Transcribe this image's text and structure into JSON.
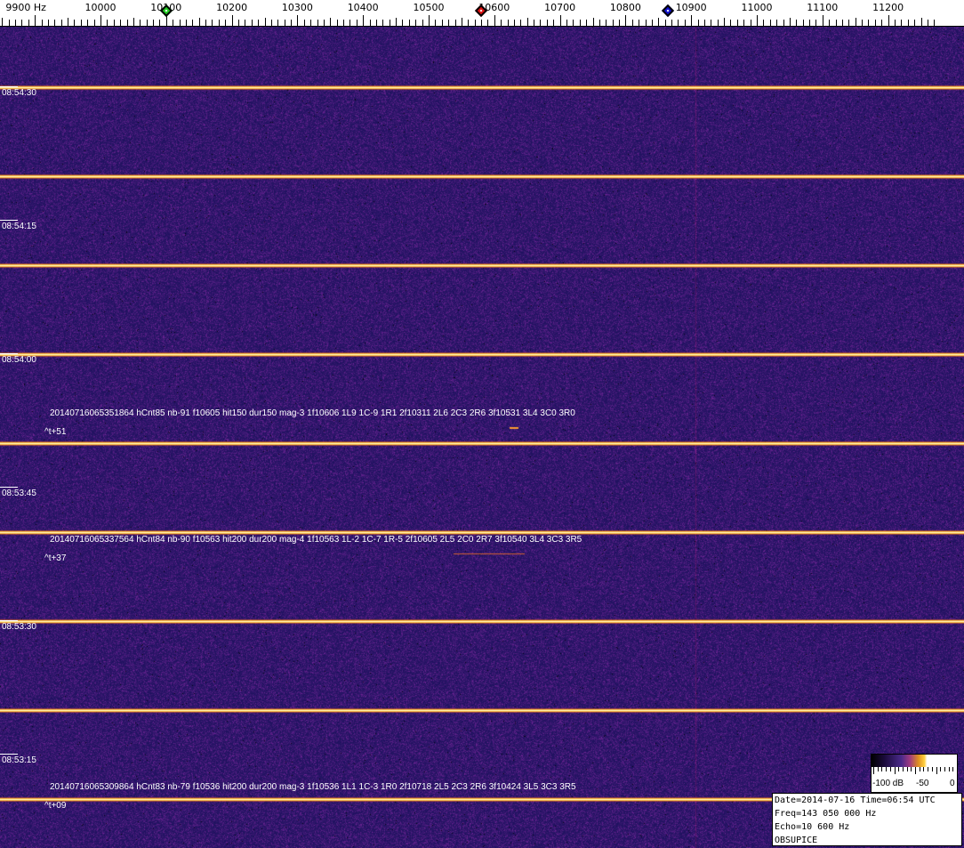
{
  "frequency_scale": {
    "labels": [
      "9900 Hz",
      "10000",
      "10100",
      "10200",
      "10300",
      "10400",
      "10500",
      "10600",
      "10700",
      "10800",
      "10900",
      "11000",
      "11100",
      "11200"
    ],
    "markers": [
      {
        "name": "green",
        "freq_hz": 10100,
        "color": "#22cc22"
      },
      {
        "name": "red",
        "freq_hz": 10580,
        "color": "#dd1111"
      },
      {
        "name": "blue",
        "freq_hz": 10865,
        "color": "#1111cc"
      }
    ]
  },
  "time_labels": [
    "08:54:30",
    "08:54:15",
    "08:54:00",
    "08:53:45",
    "08:53:30",
    "08:53:15"
  ],
  "detections": [
    {
      "text": "20140716065351864 hCnt85 nb-91 f10605 hit150 dur150 mag-3 1f10606 1L9 1C-9 1R1 2f10311 2L6 2C3 2R6 3f10531 3L4 3C0 3R0",
      "offset": "^t+51"
    },
    {
      "text": "20140716065337564 hCnt84 nb-90 f10563 hit200 dur200 mag-4 1f10563 1L-2 1C-7 1R-5 2f10605 2L5 2C0 2R7 3f10540 3L4 3C3 3R5",
      "offset": "^t+37"
    },
    {
      "text": "20140716065309864 hCnt83 nb-79 f10536 hit200 dur200 mag-3 1f10536 1L1 1C-3 1R0 2f10718 2L5 2C3 2R6 3f10424 3L5 3C3 3R5",
      "offset": "^t+09"
    }
  ],
  "colorbar": {
    "min_label": "-100 dB",
    "mid_label": "-50",
    "max_label": "0"
  },
  "info": {
    "date_line": "Date=2014-07-16 Time=06:54 UTC",
    "freq_line": "Freq=143 050 000 Hz",
    "echo_line": "Echo=10 600 Hz",
    "station": "OBSUPICE"
  },
  "colors": {
    "background": "#2b1a6e",
    "carrier": "#ffd040"
  }
}
